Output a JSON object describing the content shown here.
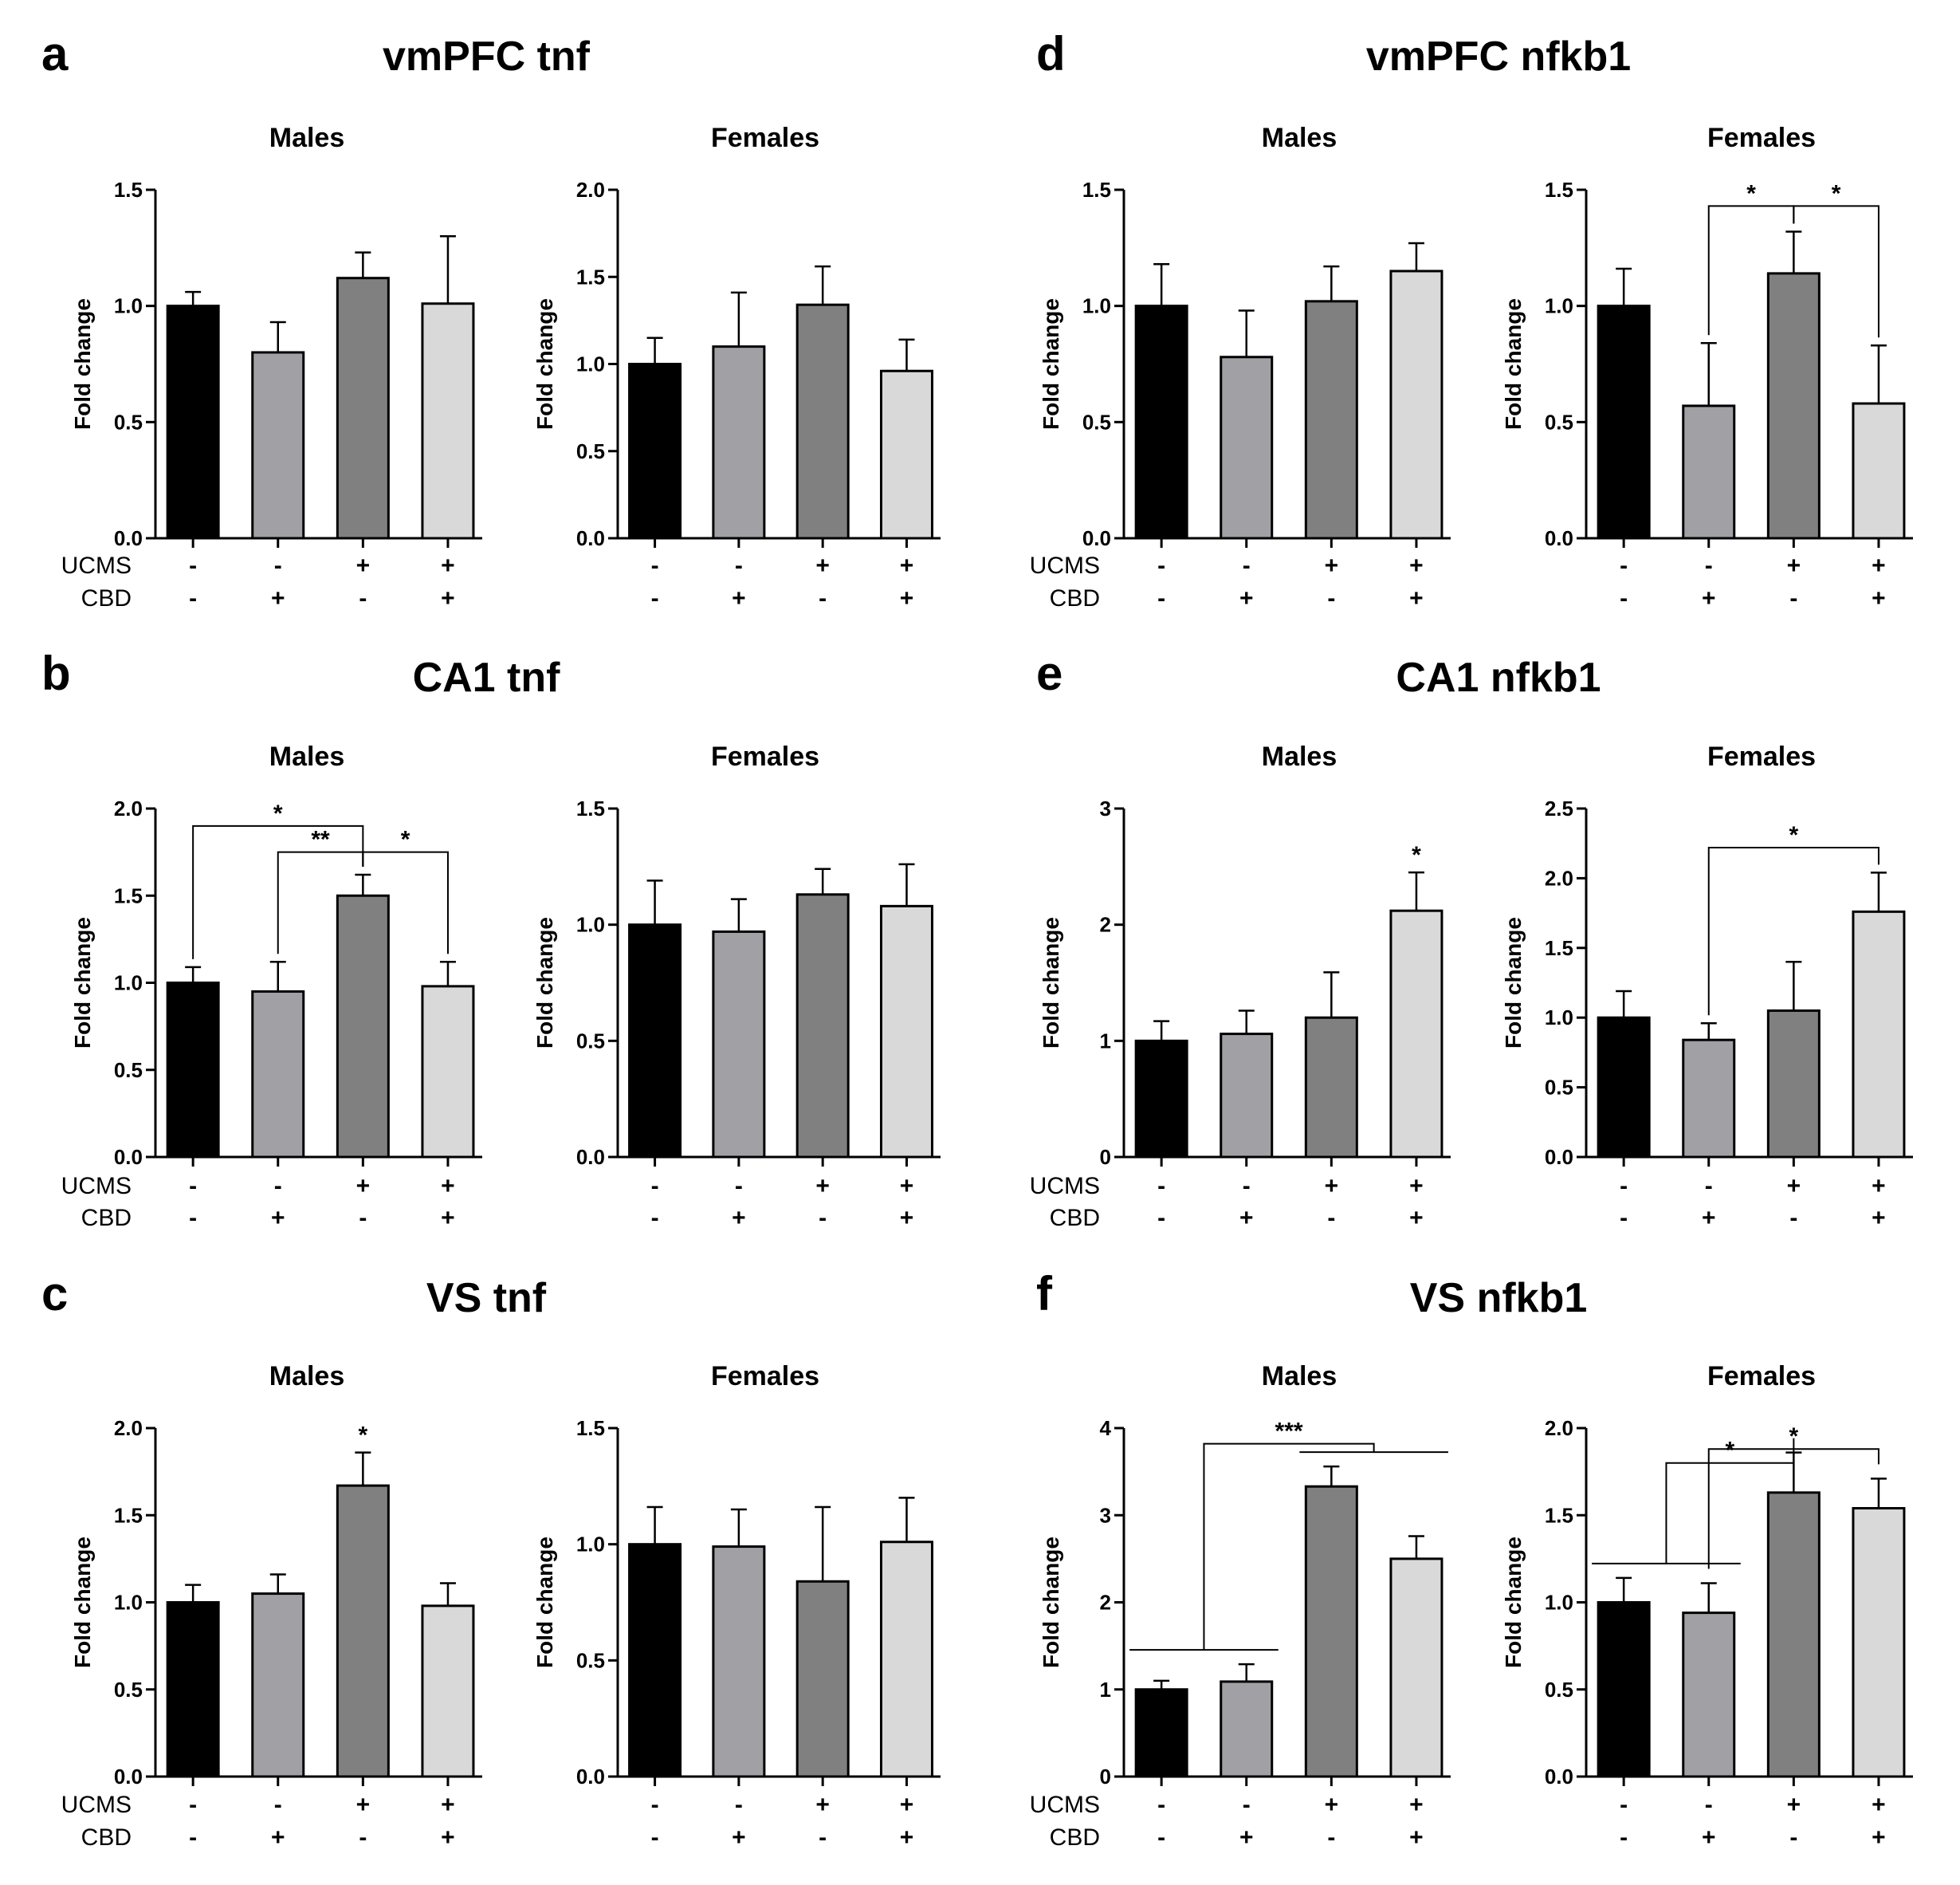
{
  "colors": {
    "bar_colors": [
      "#000000",
      "#a0a0a5",
      "#808080",
      "#d9d9d9"
    ],
    "axis": "#000000"
  },
  "conditions": {
    "ucms_label": "UCMS",
    "cbd_label": "CBD",
    "ucms_signs": [
      "-",
      "-",
      "+",
      "+"
    ],
    "cbd_signs": [
      "-",
      "+",
      "-",
      "+"
    ]
  },
  "chart_data": [
    {
      "letter": "a",
      "title": "vmPFC tnf",
      "ylabel": "Fold change",
      "show_condition_labels": true,
      "charts": [
        {
          "subtitle": "Males",
          "type": "bar",
          "ylim": [
            0,
            1.5
          ],
          "yticks": [
            "0.0",
            "0.5",
            "1.0",
            "1.5"
          ],
          "values": [
            1.0,
            0.8,
            1.12,
            1.01
          ],
          "errors": [
            0.06,
            0.13,
            0.11,
            0.29
          ],
          "stars": [],
          "brackets": []
        },
        {
          "subtitle": "Females",
          "type": "bar",
          "ylim": [
            0,
            2.0
          ],
          "yticks": [
            "0.0",
            "0.5",
            "1.0",
            "1.5",
            "2.0"
          ],
          "values": [
            1.0,
            1.1,
            1.34,
            0.96
          ],
          "errors": [
            0.15,
            0.31,
            0.22,
            0.18
          ],
          "stars": [],
          "brackets": []
        }
      ]
    },
    {
      "letter": "d",
      "title": "vmPFC nfkb1",
      "ylabel": "Fold change",
      "show_condition_labels": true,
      "charts": [
        {
          "subtitle": "Males",
          "type": "bar",
          "ylim": [
            0,
            1.5
          ],
          "yticks": [
            "0.0",
            "0.5",
            "1.0",
            "1.5"
          ],
          "values": [
            1.0,
            0.78,
            1.02,
            1.15
          ],
          "errors": [
            0.18,
            0.2,
            0.15,
            0.12
          ],
          "stars": [],
          "brackets": []
        },
        {
          "subtitle": "Females",
          "type": "bar",
          "ylim": [
            0,
            1.5
          ],
          "yticks": [
            "0.0",
            "0.5",
            "1.0",
            "1.5"
          ],
          "values": [
            1.0,
            0.57,
            1.14,
            0.58
          ],
          "errors": [
            0.16,
            0.27,
            0.18,
            0.25
          ],
          "stars": [],
          "brackets": [
            {
              "from": 1,
              "to": 2,
              "y": 1.43,
              "label": "*"
            },
            {
              "from": 2,
              "to": 3,
              "y": 1.43,
              "label": "*"
            }
          ]
        }
      ]
    },
    {
      "letter": "b",
      "title": "CA1 tnf",
      "ylabel": "Fold change",
      "show_condition_labels": true,
      "charts": [
        {
          "subtitle": "Males",
          "type": "bar",
          "ylim": [
            0,
            2.0
          ],
          "yticks": [
            "0.0",
            "0.5",
            "1.0",
            "1.5",
            "2.0"
          ],
          "values": [
            1.0,
            0.95,
            1.5,
            0.98
          ],
          "errors": [
            0.09,
            0.17,
            0.12,
            0.14
          ],
          "stars": [],
          "brackets": [
            {
              "from": 0,
              "to": 2,
              "y": 1.9,
              "label": "*"
            },
            {
              "from": 1,
              "to": 2,
              "y": 1.75,
              "label": "**"
            },
            {
              "from": 2,
              "to": 3,
              "y": 1.75,
              "label": "*"
            }
          ]
        },
        {
          "subtitle": "Females",
          "type": "bar",
          "ylim": [
            0,
            1.5
          ],
          "yticks": [
            "0.0",
            "0.5",
            "1.0",
            "1.5"
          ],
          "values": [
            1.0,
            0.97,
            1.13,
            1.08
          ],
          "errors": [
            0.19,
            0.14,
            0.11,
            0.18
          ],
          "stars": [],
          "brackets": []
        }
      ]
    },
    {
      "letter": "e",
      "title": "CA1 nfkb1",
      "ylabel": "Fold change",
      "show_condition_labels": true,
      "charts": [
        {
          "subtitle": "Males",
          "type": "bar",
          "ylim": [
            0,
            3
          ],
          "yticks": [
            "0",
            "1",
            "2",
            "3"
          ],
          "values": [
            1.0,
            1.06,
            1.2,
            2.12
          ],
          "errors": [
            0.17,
            0.2,
            0.39,
            0.33
          ],
          "stars": [
            "",
            "",
            "",
            "*"
          ],
          "brackets": []
        },
        {
          "subtitle": "Females",
          "type": "bar",
          "ylim": [
            0,
            2.5
          ],
          "yticks": [
            "0.0",
            "0.5",
            "1.0",
            "1.5",
            "2.0",
            "2.5"
          ],
          "values": [
            1.0,
            0.84,
            1.05,
            1.76
          ],
          "errors": [
            0.19,
            0.12,
            0.35,
            0.28
          ],
          "stars": [],
          "brackets": [
            {
              "from": 1,
              "to": 3,
              "y": 2.22,
              "label": "*"
            }
          ]
        }
      ]
    },
    {
      "letter": "c",
      "title": "VS tnf",
      "ylabel": "Fold change",
      "show_condition_labels": true,
      "charts": [
        {
          "subtitle": "Males",
          "type": "bar",
          "ylim": [
            0,
            2.0
          ],
          "yticks": [
            "0.0",
            "0.5",
            "1.0",
            "1.5",
            "2.0"
          ],
          "values": [
            1.0,
            1.05,
            1.67,
            0.98
          ],
          "errors": [
            0.1,
            0.11,
            0.19,
            0.13
          ],
          "stars": [
            "",
            "",
            "*",
            ""
          ],
          "brackets": []
        },
        {
          "subtitle": "Females",
          "type": "bar",
          "ylim": [
            0,
            1.5
          ],
          "yticks": [
            "0.0",
            "0.5",
            "1.0",
            "1.5"
          ],
          "values": [
            1.0,
            0.99,
            0.84,
            1.01
          ],
          "errors": [
            0.16,
            0.16,
            0.32,
            0.19
          ],
          "stars": [],
          "brackets": []
        }
      ]
    },
    {
      "letter": "f",
      "title": "VS nfkb1",
      "ylabel": "Fold change",
      "show_condition_labels": true,
      "charts": [
        {
          "subtitle": "Males",
          "type": "bar",
          "ylim": [
            0,
            4
          ],
          "yticks": [
            "0",
            "1",
            "2",
            "3",
            "4"
          ],
          "values": [
            1.0,
            1.09,
            3.33,
            2.5
          ],
          "errors": [
            0.1,
            0.2,
            0.23,
            0.26
          ],
          "stars": [],
          "group_brackets": [
            {
              "groups": [
                [
                  0,
                  1
                ],
                [
                  2,
                  3
                ]
              ],
              "y": 3.82,
              "label": "***"
            }
          ]
        },
        {
          "subtitle": "Females",
          "type": "bar",
          "ylim": [
            0,
            2.0
          ],
          "yticks": [
            "0.0",
            "0.5",
            "1.0",
            "1.5",
            "2.0"
          ],
          "values": [
            1.0,
            0.94,
            1.63,
            1.54
          ],
          "errors": [
            0.14,
            0.17,
            0.23,
            0.17
          ],
          "stars": [],
          "group_brackets": [
            {
              "groups": [
                [
                  0,
                  1
                ],
                [
                  2
                ]
              ],
              "y": 1.8,
              "label": "*"
            },
            {
              "groups": [
                [
                  1
                ],
                [
                  3
                ]
              ],
              "y": 1.88,
              "label": "*"
            }
          ]
        }
      ]
    }
  ]
}
